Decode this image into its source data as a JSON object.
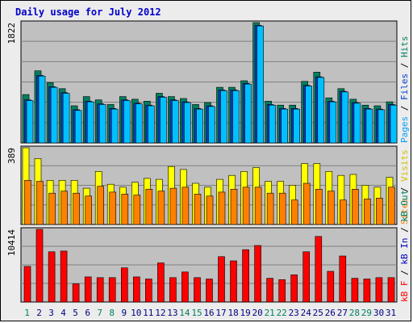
{
  "title": "Daily usage for July 2012",
  "chart_data": [
    {
      "type": "bar",
      "panel": "top",
      "ymax_label": "1822",
      "ylim": [
        0,
        1822
      ],
      "right_labels": [
        {
          "text": "Pages",
          "color": "#00a0ff"
        },
        {
          "text": " / ",
          "color": "#000000"
        },
        {
          "text": "Files",
          "color": "#0040d0"
        },
        {
          "text": " / ",
          "color": "#000000"
        },
        {
          "text": "Hits",
          "color": "#008060"
        }
      ],
      "series": [
        {
          "name": "Hits",
          "color": "#008060",
          "values": [
            732,
            1092,
            912,
            822,
            562,
            702,
            652,
            582,
            702,
            662,
            632,
            752,
            702,
            672,
            582,
            612,
            842,
            842,
            942,
            1822,
            632,
            572,
            572,
            932,
            1072,
            682,
            822,
            662,
            572,
            562,
            622
          ]
        },
        {
          "name": "Files",
          "color": "#0040d0",
          "values": [
            652,
            1022,
            852,
            762,
            502,
            632,
            592,
            522,
            652,
            602,
            572,
            702,
            652,
            622,
            522,
            562,
            802,
            802,
            902,
            1782,
            582,
            522,
            522,
            872,
            1002,
            632,
            782,
            612,
            522,
            512,
            582
          ]
        },
        {
          "name": "Pages",
          "color": "#00c0ff",
          "values": [
            642,
            1012,
            842,
            752,
            492,
            622,
            582,
            512,
            642,
            592,
            562,
            692,
            642,
            612,
            512,
            552,
            792,
            792,
            892,
            1772,
            572,
            512,
            512,
            862,
            992,
            622,
            772,
            602,
            512,
            502,
            572
          ]
        }
      ]
    },
    {
      "type": "bar",
      "panel": "middle",
      "ymax_label": "389",
      "ylim": [
        0,
        389
      ],
      "right_labels": [
        {
          "text": "Sites",
          "color": "#ff8000"
        },
        {
          "text": " / ",
          "color": "#000000"
        },
        {
          "text": "Visits",
          "color": "#d0c000"
        }
      ],
      "series": [
        {
          "name": "Visits",
          "color": "#ffff00",
          "values": [
            389,
            334,
            224,
            224,
            224,
            184,
            269,
            204,
            189,
            214,
            234,
            229,
            294,
            279,
            209,
            189,
            229,
            249,
            269,
            289,
            219,
            219,
            199,
            309,
            309,
            269,
            249,
            254,
            199,
            189,
            239
          ]
        },
        {
          "name": "Sites",
          "color": "#ff8000",
          "values": [
            224,
            219,
            159,
            169,
            159,
            144,
            194,
            164,
            154,
            149,
            179,
            169,
            184,
            189,
            154,
            144,
            164,
            179,
            189,
            189,
            159,
            159,
            124,
            209,
            179,
            169,
            124,
            179,
            129,
            134,
            189
          ]
        }
      ]
    },
    {
      "type": "bar",
      "panel": "bottom",
      "ymax_label": "10414",
      "ylim": [
        0,
        10414
      ],
      "right_labels": [
        {
          "text": "kB F",
          "color": "#ff0000"
        },
        {
          "text": " / ",
          "color": "#000000"
        },
        {
          "text": "kB In",
          "color": "#0000c0"
        },
        {
          "text": " / ",
          "color": "#000000"
        },
        {
          "text": "kB Out",
          "color": "#008060"
        }
      ],
      "series": [
        {
          "name": "kB F",
          "color": "#ff0000",
          "values": [
            5100,
            10414,
            7200,
            7300,
            2600,
            3600,
            3500,
            3500,
            4900,
            3600,
            3300,
            5600,
            3500,
            4300,
            3500,
            3300,
            6500,
            5900,
            7500,
            8100,
            3400,
            3200,
            3900,
            7200,
            9400,
            4400,
            6600,
            3400,
            3300,
            3500,
            3500
          ]
        }
      ]
    }
  ],
  "x_labels": [
    {
      "day": "1",
      "color": "#008060"
    },
    {
      "day": "2",
      "color": "#000080"
    },
    {
      "day": "3",
      "color": "#000080"
    },
    {
      "day": "4",
      "color": "#000080"
    },
    {
      "day": "5",
      "color": "#000080"
    },
    {
      "day": "6",
      "color": "#000080"
    },
    {
      "day": "7",
      "color": "#008060"
    },
    {
      "day": "8",
      "color": "#008060"
    },
    {
      "day": "9",
      "color": "#000080"
    },
    {
      "day": "10",
      "color": "#000080"
    },
    {
      "day": "11",
      "color": "#000080"
    },
    {
      "day": "12",
      "color": "#000080"
    },
    {
      "day": "13",
      "color": "#000080"
    },
    {
      "day": "14",
      "color": "#008060"
    },
    {
      "day": "15",
      "color": "#008060"
    },
    {
      "day": "16",
      "color": "#000080"
    },
    {
      "day": "17",
      "color": "#000080"
    },
    {
      "day": "18",
      "color": "#000080"
    },
    {
      "day": "19",
      "color": "#000080"
    },
    {
      "day": "20",
      "color": "#000080"
    },
    {
      "day": "21",
      "color": "#008060"
    },
    {
      "day": "22",
      "color": "#008060"
    },
    {
      "day": "23",
      "color": "#000080"
    },
    {
      "day": "24",
      "color": "#000080"
    },
    {
      "day": "25",
      "color": "#000080"
    },
    {
      "day": "26",
      "color": "#000080"
    },
    {
      "day": "27",
      "color": "#000080"
    },
    {
      "day": "28",
      "color": "#008060"
    },
    {
      "day": "29",
      "color": "#008060"
    },
    {
      "day": "30",
      "color": "#000080"
    },
    {
      "day": "31",
      "color": "#000080"
    }
  ]
}
